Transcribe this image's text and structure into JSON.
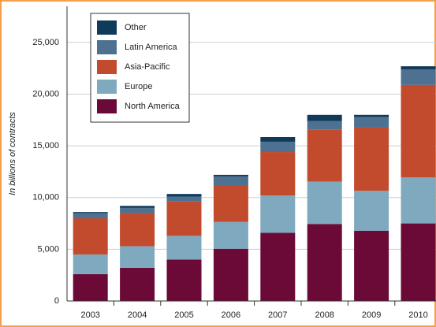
{
  "chart_data": {
    "type": "stacked-bar",
    "y_label": "In billions of contracts",
    "categories": [
      "2003",
      "2004",
      "2005",
      "2006",
      "2007",
      "2008",
      "2009",
      "2010"
    ],
    "series": [
      {
        "name": "North America",
        "color": "#6b0a36",
        "values": [
          2600,
          3200,
          4000,
          5050,
          6600,
          7450,
          6800,
          7500
        ]
      },
      {
        "name": "Europe",
        "color": "#7fa9bf",
        "values": [
          1900,
          2100,
          2300,
          2600,
          3600,
          4100,
          3850,
          4450
        ]
      },
      {
        "name": "Asia-Pacific",
        "color": "#c24b2d",
        "values": [
          3500,
          3200,
          3350,
          3550,
          4200,
          5000,
          6150,
          8950
        ]
      },
      {
        "name": "Latin America",
        "color": "#4e7192",
        "values": [
          500,
          500,
          450,
          850,
          1000,
          850,
          1000,
          1500
        ]
      },
      {
        "name": "Other",
        "color": "#0f3a5a",
        "values": [
          100,
          200,
          250,
          150,
          450,
          600,
          200,
          300
        ]
      }
    ],
    "ylim": [
      0,
      28500
    ],
    "yticks": [
      0,
      {
        "value": 5000,
        "label": "5,000"
      },
      {
        "value": 10000,
        "label": "10,000"
      },
      {
        "value": 15000,
        "label": "15,000"
      },
      {
        "value": 20000,
        "label": "20,000"
      },
      {
        "value": 25000,
        "label": "25,000"
      }
    ],
    "grid": true
  }
}
